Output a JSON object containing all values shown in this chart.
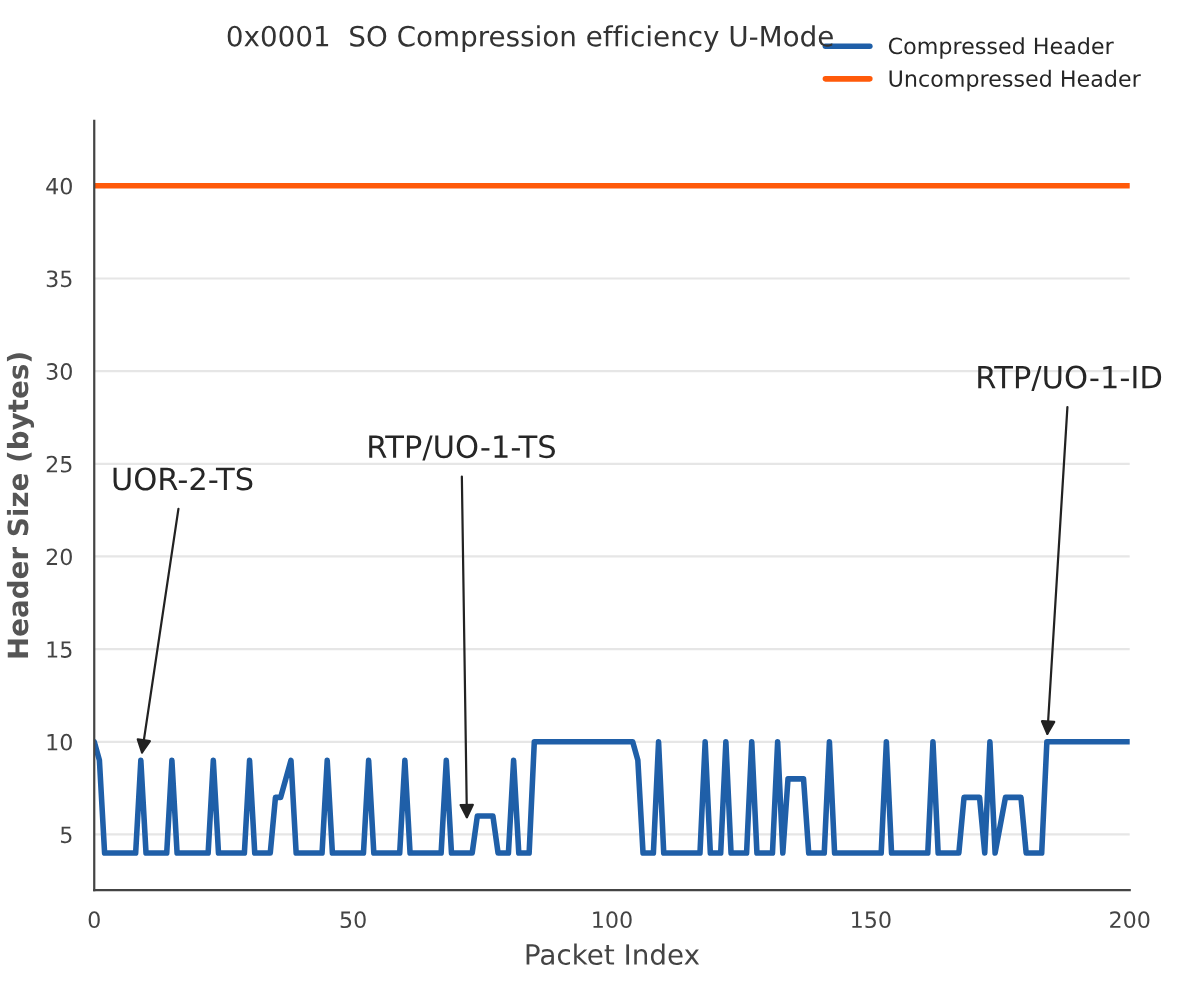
{
  "chart_data": {
    "type": "line",
    "title": "0x0001  SO Compression efficiency U-Mode",
    "xlabel": "Packet Index",
    "ylabel": "Header Size (bytes)",
    "series": [
      {
        "name": "Compressed Header",
        "color": "#1f5fa8",
        "x": [
          0,
          1,
          2,
          8,
          9,
          10,
          14,
          15,
          16,
          22,
          23,
          24,
          29,
          30,
          31,
          34,
          35,
          36,
          38,
          39,
          44,
          45,
          46,
          52,
          53,
          54,
          59,
          60,
          61,
          67,
          68,
          69,
          73,
          74,
          77,
          78,
          80,
          81,
          82,
          84,
          85,
          104,
          105,
          106,
          108,
          109,
          110,
          117,
          118,
          119,
          121,
          122,
          123,
          126,
          127,
          128,
          131,
          132,
          133,
          134,
          137,
          138,
          141,
          142,
          143,
          152,
          153,
          154,
          161,
          162,
          163,
          167,
          168,
          171,
          172,
          173,
          174,
          176,
          179,
          180,
          183,
          184,
          200
        ],
        "values": [
          10,
          9,
          4,
          4,
          9,
          4,
          4,
          9,
          4,
          4,
          9,
          4,
          4,
          9,
          4,
          4,
          7,
          7,
          9,
          4,
          4,
          9,
          4,
          4,
          9,
          4,
          4,
          9,
          4,
          4,
          9,
          4,
          4,
          6,
          6,
          4,
          4,
          9,
          4,
          4,
          10,
          10,
          9,
          4,
          4,
          10,
          4,
          4,
          10,
          4,
          4,
          10,
          4,
          4,
          10,
          4,
          4,
          10,
          4,
          8,
          8,
          4,
          4,
          10,
          4,
          4,
          10,
          4,
          4,
          10,
          4,
          4,
          7,
          7,
          4,
          10,
          4,
          7,
          7,
          4,
          4,
          10,
          10
        ]
      },
      {
        "name": "Uncompressed Header",
        "color": "#ff5a0a",
        "x": [
          0,
          200
        ],
        "values": [
          40,
          40
        ]
      }
    ],
    "xlim": [
      0,
      200
    ],
    "xticks": [
      0,
      50,
      100,
      150,
      200
    ],
    "ylim": [
      2,
      43.5
    ],
    "yticks": [
      5,
      10,
      15,
      20,
      25,
      30,
      35,
      40
    ],
    "grid": "y",
    "legend": "top right",
    "marker": "none",
    "line_style": "solid",
    "annotations": [
      {
        "text": "UOR-2-TS",
        "x": 9,
        "y": 9
      },
      {
        "text": "RTP/UO-1-TS",
        "x": 72,
        "y": 5.5
      },
      {
        "text": "RTP/UO-1-ID",
        "x": 184,
        "y": 10
      }
    ]
  }
}
